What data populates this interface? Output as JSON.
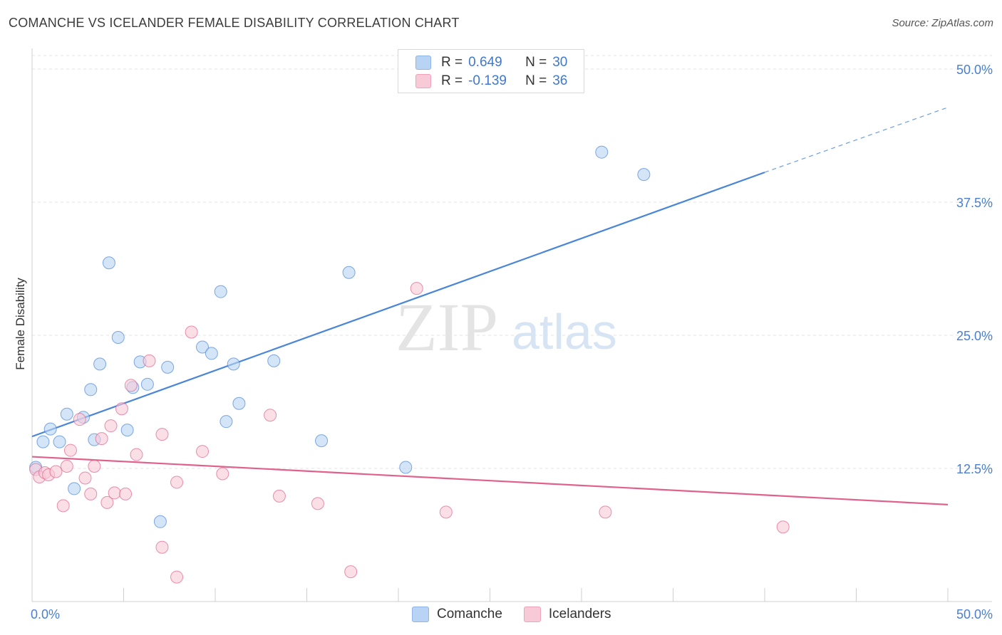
{
  "title": "COMANCHE VS ICELANDER FEMALE DISABILITY CORRELATION CHART",
  "source": "Source: ZipAtlas.com",
  "watermark": {
    "zip": "ZIP",
    "atlas": "atlas"
  },
  "legend": {
    "rows": [
      {
        "r_label": "R =",
        "r_value": "0.649",
        "n_label": "N =",
        "n_value": "30",
        "color": "#a8c8f0"
      },
      {
        "r_label": "R =",
        "r_value": "-0.139",
        "n_label": "N =",
        "n_value": "36",
        "color": "#f5b5c8"
      }
    ]
  },
  "bottom_legend": [
    {
      "label": "Comanche",
      "color": "#b8d3f4"
    },
    {
      "label": "Icelanders",
      "color": "#f8c9d7"
    }
  ],
  "chart_data": {
    "type": "scatter",
    "title": "COMANCHE VS ICELANDER FEMALE DISABILITY CORRELATION CHART",
    "xlabel": "",
    "ylabel": "Female Disability",
    "xlim": [
      0,
      50
    ],
    "ylim": [
      0,
      50
    ],
    "x_tick_labels": [
      "0.0%",
      "50.0%"
    ],
    "y_ticks": [
      12.5,
      25.0,
      37.5,
      50.0
    ],
    "y_tick_labels": [
      "12.5%",
      "25.0%",
      "37.5%",
      "50.0%"
    ],
    "grid": true,
    "series": [
      {
        "name": "Comanche",
        "color": "#4a86d8",
        "fill": "#b8d3f4",
        "points": [
          [
            0.2,
            12.6
          ],
          [
            0.6,
            15.0
          ],
          [
            1.0,
            16.2
          ],
          [
            1.5,
            15.0
          ],
          [
            1.9,
            17.6
          ],
          [
            2.3,
            10.6
          ],
          [
            2.8,
            17.3
          ],
          [
            3.2,
            19.9
          ],
          [
            3.4,
            15.2
          ],
          [
            3.7,
            22.3
          ],
          [
            4.2,
            31.8
          ],
          [
            4.7,
            24.8
          ],
          [
            5.2,
            16.1
          ],
          [
            5.5,
            20.1
          ],
          [
            5.9,
            22.5
          ],
          [
            6.3,
            20.4
          ],
          [
            7.0,
            7.5
          ],
          [
            7.4,
            22.0
          ],
          [
            9.3,
            23.9
          ],
          [
            9.8,
            23.3
          ],
          [
            10.3,
            29.1
          ],
          [
            10.6,
            16.9
          ],
          [
            11.0,
            22.3
          ],
          [
            11.3,
            18.6
          ],
          [
            13.2,
            22.6
          ],
          [
            15.8,
            15.1
          ],
          [
            17.3,
            30.9
          ],
          [
            20.4,
            12.6
          ],
          [
            31.1,
            42.2
          ],
          [
            33.4,
            40.1
          ]
        ],
        "trend": {
          "x0": 0,
          "y0": 15.5,
          "x1": 40,
          "y1": 40.3,
          "x1_dashed": 50,
          "y1_dashed": 46.4
        }
      },
      {
        "name": "Icelanders",
        "color": "#e0628c",
        "fill": "#f8c9d7",
        "points": [
          [
            0.2,
            12.4
          ],
          [
            0.4,
            11.7
          ],
          [
            0.7,
            12.1
          ],
          [
            0.9,
            11.9
          ],
          [
            1.3,
            12.2
          ],
          [
            1.7,
            9.0
          ],
          [
            1.9,
            12.7
          ],
          [
            2.1,
            14.2
          ],
          [
            2.6,
            17.1
          ],
          [
            2.9,
            11.6
          ],
          [
            3.2,
            10.1
          ],
          [
            3.4,
            12.7
          ],
          [
            3.8,
            15.3
          ],
          [
            4.1,
            9.3
          ],
          [
            4.3,
            16.5
          ],
          [
            4.5,
            10.2
          ],
          [
            4.9,
            18.1
          ],
          [
            5.1,
            10.1
          ],
          [
            5.4,
            20.3
          ],
          [
            5.7,
            13.8
          ],
          [
            6.4,
            22.6
          ],
          [
            7.1,
            15.7
          ],
          [
            7.1,
            5.1
          ],
          [
            7.9,
            11.2
          ],
          [
            7.9,
            2.3
          ],
          [
            8.7,
            25.3
          ],
          [
            9.3,
            14.1
          ],
          [
            10.4,
            12.0
          ],
          [
            13.0,
            17.5
          ],
          [
            13.5,
            9.9
          ],
          [
            15.6,
            9.2
          ],
          [
            17.4,
            2.8
          ],
          [
            21.0,
            29.4
          ],
          [
            22.6,
            8.4
          ],
          [
            31.3,
            8.4
          ],
          [
            41.0,
            7.0
          ]
        ],
        "trend": {
          "x0": 0,
          "y0": 13.6,
          "x1": 50,
          "y1": 9.1
        }
      }
    ]
  }
}
